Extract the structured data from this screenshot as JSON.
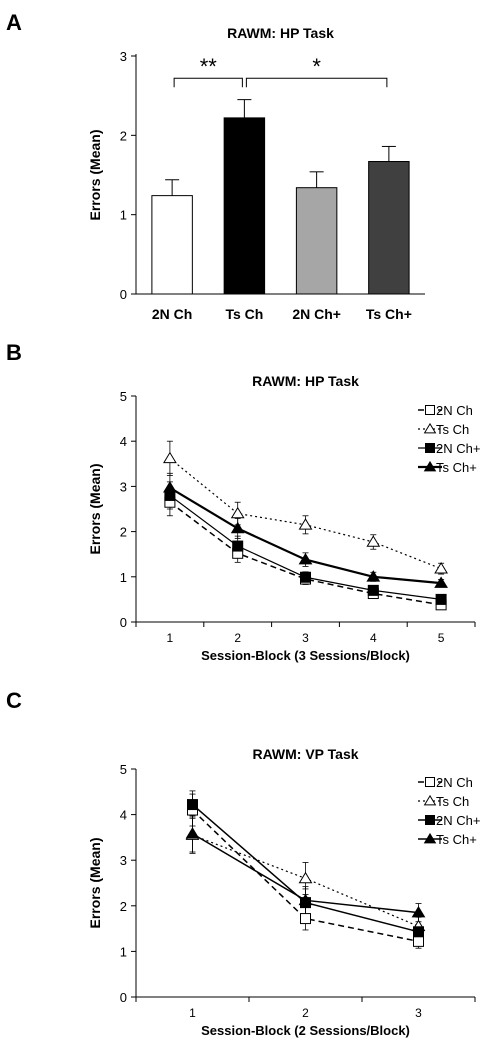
{
  "chart_data": [
    {
      "panel_label": "A",
      "type": "bar",
      "title": "RAWM: HP Task",
      "xlabel": "",
      "ylabel": "Errors (Mean)",
      "ylim": [
        0,
        3
      ],
      "yticks": [
        "0",
        "1",
        "2",
        "3"
      ],
      "categories": [
        "2N Ch",
        "Ts Ch",
        "2N Ch+",
        "Ts Ch+"
      ],
      "values": [
        1.24,
        2.22,
        1.34,
        1.67
      ],
      "errors": [
        0.2,
        0.23,
        0.2,
        0.19
      ],
      "colors": [
        "#ffffff",
        "#000000",
        "#a6a6a6",
        "#404040"
      ],
      "significance": [
        {
          "label": "**",
          "from": 0,
          "to": 1,
          "y": 2.72
        },
        {
          "label": "*",
          "from": 1,
          "to": 3,
          "y": 2.72
        }
      ]
    },
    {
      "panel_label": "B",
      "type": "line",
      "title": "RAWM: HP Task",
      "xlabel": "Session-Block (3 Sessions/Block)",
      "ylabel": "Errors (Mean)",
      "ylim": [
        0,
        5
      ],
      "yticks": [
        "0",
        "1",
        "2",
        "3",
        "4",
        "5"
      ],
      "x": [
        1,
        2,
        3,
        4,
        5
      ],
      "legend": "top-right",
      "series": [
        {
          "name": "2N Ch",
          "values": [
            2.65,
            1.52,
            0.95,
            0.63,
            0.38
          ],
          "errors": [
            0.3,
            0.2,
            0.12,
            0.1,
            0.08
          ],
          "marker": "square-open",
          "dash": "6,4",
          "width": 1.5
        },
        {
          "name": "Ts Ch",
          "values": [
            3.62,
            2.4,
            2.15,
            1.77,
            1.18
          ],
          "errors": [
            0.38,
            0.25,
            0.2,
            0.16,
            0.12
          ],
          "marker": "triangle-open",
          "dash": "2,3",
          "width": 1.2
        },
        {
          "name": "2N Ch+",
          "values": [
            2.8,
            1.68,
            0.99,
            0.7,
            0.5
          ],
          "errors": [
            0.3,
            0.22,
            0.12,
            0.1,
            0.08
          ],
          "marker": "square-filled",
          "dash": "",
          "width": 1.2
        },
        {
          "name": "Ts Ch+",
          "values": [
            2.97,
            2.07,
            1.38,
            1.0,
            0.86
          ],
          "errors": [
            0.32,
            0.22,
            0.15,
            0.1,
            0.08
          ],
          "marker": "triangle-filled",
          "dash": "",
          "width": 2.2
        }
      ]
    },
    {
      "panel_label": "C",
      "type": "line",
      "title": "RAWM: VP Task",
      "xlabel": "Session-Block (2 Sessions/Block)",
      "ylabel": "Errors (Mean)",
      "ylim": [
        0,
        5
      ],
      "yticks": [
        "0",
        "1",
        "2",
        "3",
        "4",
        "5"
      ],
      "x": [
        1,
        2,
        3
      ],
      "legend": "top-right",
      "series": [
        {
          "name": "2N Ch",
          "values": [
            4.1,
            1.72,
            1.22
          ],
          "errors": [
            0.35,
            0.25,
            0.15
          ],
          "marker": "square-open",
          "dash": "6,4",
          "width": 1.5
        },
        {
          "name": "Ts Ch",
          "values": [
            3.55,
            2.6,
            1.55
          ],
          "errors": [
            0.4,
            0.35,
            0.2
          ],
          "marker": "triangle-open",
          "dash": "2,3",
          "width": 1.2
        },
        {
          "name": "2N Ch+",
          "values": [
            4.22,
            2.07,
            1.43
          ],
          "errors": [
            0.3,
            0.3,
            0.15
          ],
          "marker": "square-filled",
          "dash": "",
          "width": 1.5
        },
        {
          "name": "Ts Ch+",
          "values": [
            3.58,
            2.12,
            1.85
          ],
          "errors": [
            0.4,
            0.3,
            0.2
          ],
          "marker": "triangle-filled",
          "dash": "",
          "width": 1.5
        }
      ]
    }
  ]
}
